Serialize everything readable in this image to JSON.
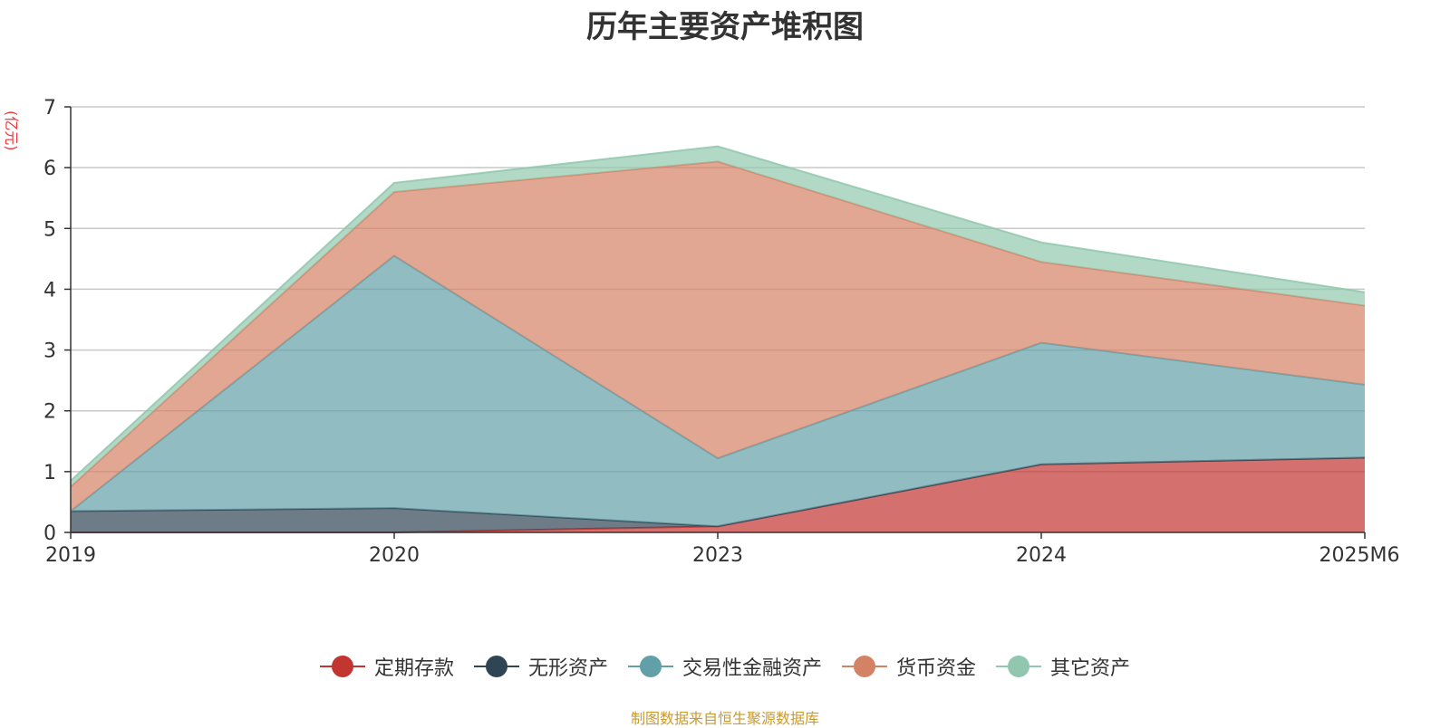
{
  "title": "历年主要资产堆积图",
  "unit_label": "(亿元)",
  "source_note": "制图数据来自恒生聚源数据库",
  "chart_data": {
    "type": "area",
    "stacked": true,
    "categories": [
      "2019",
      "2020",
      "2023",
      "2024",
      "2025M6"
    ],
    "ylim": [
      0,
      7
    ],
    "yticks": [
      "0",
      "1",
      "2",
      "3",
      "4",
      "5",
      "6",
      "7"
    ],
    "grid": true,
    "legend_position": "bottom",
    "series": [
      {
        "name": "定期存款",
        "color": "#c23531",
        "values": [
          0,
          0,
          0.1,
          1.12,
          1.23
        ]
      },
      {
        "name": "无形资产",
        "color": "#2f4554",
        "values": [
          0.35,
          0.4,
          0,
          0,
          0
        ]
      },
      {
        "name": "交易性金融资产",
        "color": "#61a0a8",
        "values": [
          0,
          4.15,
          1.12,
          2.0,
          1.2
        ]
      },
      {
        "name": "货币资金",
        "color": "#d48265",
        "values": [
          0.4,
          1.05,
          4.88,
          1.33,
          1.3
        ]
      },
      {
        "name": "其它资产",
        "color": "#91c7ae",
        "values": [
          0.1,
          0.15,
          0.25,
          0.32,
          0.22
        ]
      }
    ]
  }
}
